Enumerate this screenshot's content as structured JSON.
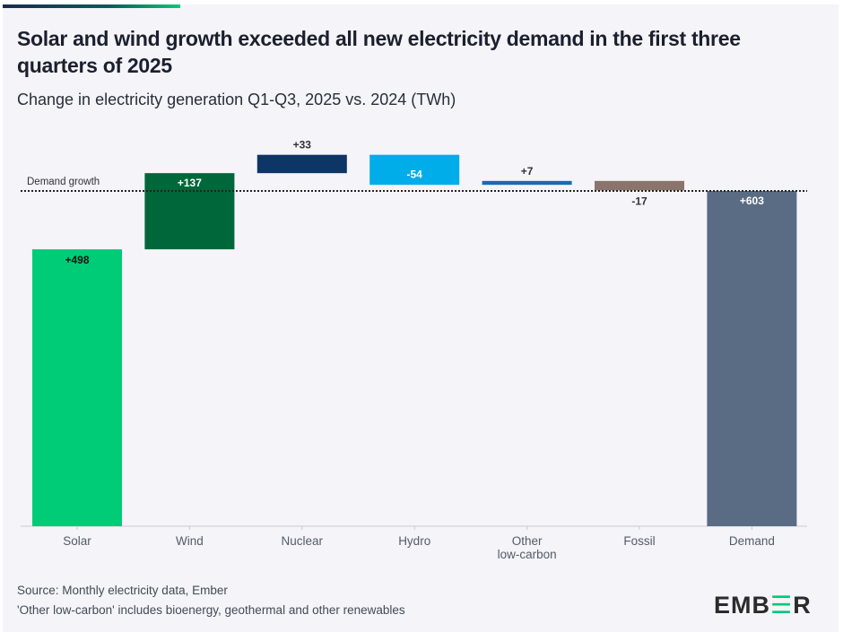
{
  "chart_data": {
    "type": "waterfall",
    "title": "Solar and wind growth exceeded all new electricity demand in the first three quarters of 2025",
    "subtitle": "Change in electricity generation Q1-Q3, 2025 vs. 2024 (TWh)",
    "categories": [
      "Solar",
      "Wind",
      "Nuclear",
      "Hydro",
      "Other\nlow-carbon",
      "Fossil",
      "Demand"
    ],
    "values": [
      498,
      137,
      33,
      -54,
      7,
      -17,
      603
    ],
    "labels": [
      "+498",
      "+137",
      "+33",
      "-54",
      "+7",
      "-17",
      "+603"
    ],
    "total_index": 6,
    "colors": [
      "#00cc78",
      "#00673a",
      "#0d3566",
      "#00ade9",
      "#1a6bb0",
      "#8a746b",
      "#5a6b84"
    ],
    "reference_line": {
      "label": "Demand growth",
      "value": 603
    },
    "ylim": [
      0,
      700
    ],
    "grid": false
  },
  "footer": {
    "source": "Source: Monthly electricity data, Ember",
    "note": "'Other low-carbon' includes bioenergy, geothermal and other renewables"
  },
  "logo": {
    "text": "EMBER"
  }
}
